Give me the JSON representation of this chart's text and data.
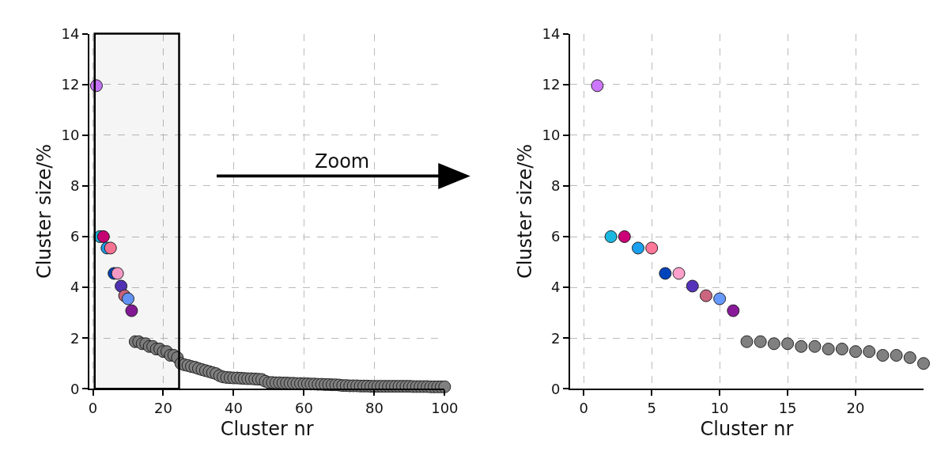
{
  "chart_data": [
    {
      "type": "scatter",
      "xlabel": "Cluster nr",
      "ylabel": "Cluster size/%",
      "x": [
        1,
        2,
        3,
        4,
        5,
        6,
        7,
        8,
        9,
        10,
        11,
        12,
        13,
        14,
        15,
        16,
        17,
        18,
        19,
        20,
        21,
        22,
        23,
        24,
        25,
        26,
        27,
        28,
        29,
        30,
        31,
        32,
        33,
        34,
        35,
        36,
        37,
        38,
        39,
        40,
        41,
        42,
        43,
        44,
        45,
        46,
        47,
        48,
        49,
        50,
        51,
        52,
        53,
        54,
        55,
        56,
        57,
        58,
        59,
        60,
        61,
        62,
        63,
        64,
        65,
        66,
        67,
        68,
        69,
        70,
        71,
        72,
        73,
        74,
        75,
        76,
        77,
        78,
        79,
        80,
        81,
        82,
        83,
        84,
        85,
        86,
        87,
        88,
        89,
        90,
        91,
        92,
        93,
        94,
        95,
        96,
        97,
        98,
        99,
        100
      ],
      "values": [
        11.95,
        6.0,
        6.0,
        5.55,
        5.55,
        4.55,
        4.55,
        4.05,
        3.67,
        3.55,
        3.08,
        1.86,
        1.86,
        1.78,
        1.78,
        1.67,
        1.67,
        1.57,
        1.57,
        1.47,
        1.47,
        1.32,
        1.32,
        1.23,
        1.0,
        0.95,
        0.92,
        0.88,
        0.85,
        0.8,
        0.76,
        0.72,
        0.68,
        0.64,
        0.6,
        0.52,
        0.47,
        0.45,
        0.44,
        0.43,
        0.43,
        0.42,
        0.41,
        0.4,
        0.4,
        0.39,
        0.38,
        0.37,
        0.3,
        0.25,
        0.25,
        0.24,
        0.24,
        0.23,
        0.23,
        0.22,
        0.22,
        0.21,
        0.21,
        0.2,
        0.2,
        0.19,
        0.19,
        0.18,
        0.18,
        0.17,
        0.17,
        0.16,
        0.16,
        0.15,
        0.13,
        0.13,
        0.12,
        0.12,
        0.12,
        0.11,
        0.11,
        0.11,
        0.1,
        0.1,
        0.1,
        0.1,
        0.1,
        0.1,
        0.1,
        0.1,
        0.1,
        0.1,
        0.1,
        0.1,
        0.09,
        0.09,
        0.09,
        0.09,
        0.09,
        0.08,
        0.08,
        0.08,
        0.08,
        0.08
      ],
      "colors": [
        "#cc77ff",
        "#1ab8e0",
        "#cc0077",
        "#1aa0f0",
        "#ff7799",
        "#0044bb",
        "#ffa0cc",
        "#5533bb",
        "#cc6680",
        "#6699ff",
        "#881a99",
        "#808080",
        "#808080",
        "#808080",
        "#808080",
        "#808080",
        "#808080",
        "#808080",
        "#808080",
        "#808080",
        "#808080",
        "#808080",
        "#808080",
        "#808080",
        "#808080",
        "#808080",
        "#808080",
        "#808080",
        "#808080",
        "#808080",
        "#808080",
        "#808080",
        "#808080",
        "#808080",
        "#808080",
        "#808080",
        "#808080",
        "#808080",
        "#808080",
        "#808080",
        "#808080",
        "#808080",
        "#808080",
        "#808080",
        "#808080",
        "#808080",
        "#808080",
        "#808080",
        "#808080",
        "#808080",
        "#808080",
        "#808080",
        "#808080",
        "#808080",
        "#808080",
        "#808080",
        "#808080",
        "#808080",
        "#808080",
        "#808080",
        "#808080",
        "#808080",
        "#808080",
        "#808080",
        "#808080",
        "#808080",
        "#808080",
        "#808080",
        "#808080",
        "#808080",
        "#808080",
        "#808080",
        "#808080",
        "#808080",
        "#808080",
        "#808080",
        "#808080",
        "#808080",
        "#808080",
        "#808080",
        "#808080",
        "#808080",
        "#808080",
        "#808080",
        "#808080",
        "#808080",
        "#808080",
        "#808080",
        "#808080",
        "#808080",
        "#808080",
        "#808080",
        "#808080",
        "#808080",
        "#808080",
        "#808080",
        "#808080",
        "#808080",
        "#808080",
        "#808080"
      ],
      "xlim": [
        -1,
        100
      ],
      "xticks": [
        0,
        20,
        40,
        60,
        80,
        100
      ],
      "ylim": [
        0,
        14
      ],
      "yticks": [
        0,
        2,
        4,
        6,
        8,
        10,
        12,
        14
      ],
      "bands": [
        {
          "axis": "x",
          "from": 0.5,
          "to": 24.5,
          "color": "#000000"
        }
      ],
      "annotations": [
        "Zoom"
      ],
      "grid": true,
      "marker": "circle"
    },
    {
      "type": "scatter",
      "xlabel": "Cluster nr",
      "ylabel": "Cluster size/%",
      "x": [
        1,
        2,
        3,
        4,
        5,
        6,
        7,
        8,
        9,
        10,
        11,
        12,
        13,
        14,
        15,
        16,
        17,
        18,
        19,
        20,
        21,
        22,
        23,
        24,
        25
      ],
      "values": [
        11.95,
        6.0,
        6.0,
        5.55,
        5.55,
        4.55,
        4.55,
        4.05,
        3.67,
        3.55,
        3.08,
        1.86,
        1.86,
        1.78,
        1.78,
        1.67,
        1.67,
        1.57,
        1.57,
        1.47,
        1.47,
        1.32,
        1.32,
        1.23,
        1.0
      ],
      "colors": [
        "#cc77ff",
        "#1ab8e0",
        "#cc0077",
        "#1aa0f0",
        "#ff7799",
        "#0044bb",
        "#ffa0cc",
        "#5533bb",
        "#cc6680",
        "#6699ff",
        "#881a99",
        "#808080",
        "#808080",
        "#808080",
        "#808080",
        "#808080",
        "#808080",
        "#808080",
        "#808080",
        "#808080",
        "#808080",
        "#808080",
        "#808080",
        "#808080",
        "#808080"
      ],
      "xlim": [
        -1,
        25
      ],
      "xticks": [
        0,
        5,
        10,
        15,
        20
      ],
      "ylim": [
        0,
        14
      ],
      "yticks": [
        0,
        2,
        4,
        6,
        8,
        10,
        12,
        14
      ],
      "grid": true,
      "marker": "circle"
    }
  ]
}
